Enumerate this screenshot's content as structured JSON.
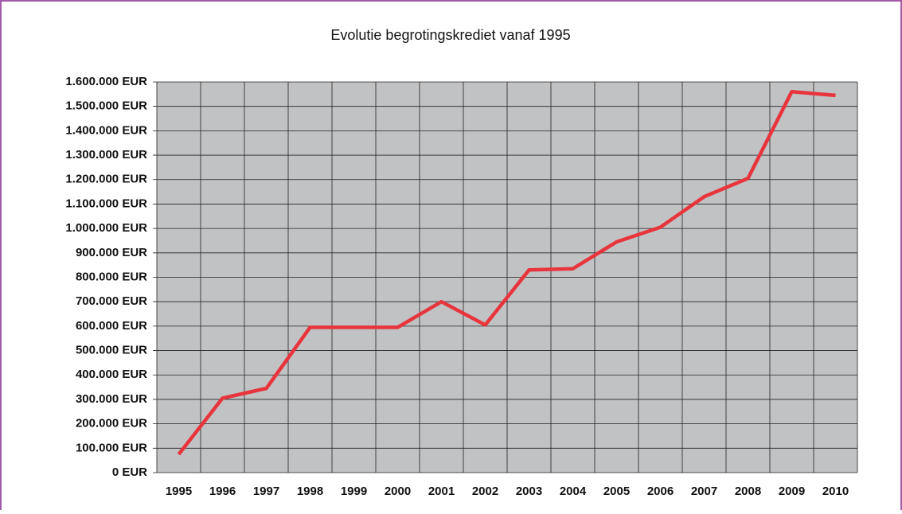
{
  "chart_data": {
    "type": "line",
    "title": "Evolutie begrotingskrediet vanaf 1995",
    "categories": [
      "1995",
      "1996",
      "1997",
      "1998",
      "1999",
      "2000",
      "2001",
      "2002",
      "2003",
      "2004",
      "2005",
      "2006",
      "2007",
      "2008",
      "2009",
      "2010"
    ],
    "series": [
      {
        "name": "Begrotingskrediet",
        "color": "#e8343c",
        "values": [
          75000,
          305000,
          345000,
          595000,
          595000,
          595000,
          700000,
          605000,
          830000,
          835000,
          945000,
          1005000,
          1130000,
          1205000,
          1560000,
          1545000
        ]
      }
    ],
    "ylim": [
      0,
      1600000
    ],
    "yticks": [
      {
        "value": 0,
        "label": "0 EUR"
      },
      {
        "value": 100000,
        "label": "100.000 EUR"
      },
      {
        "value": 200000,
        "label": "200.000 EUR"
      },
      {
        "value": 300000,
        "label": "300.000 EUR"
      },
      {
        "value": 400000,
        "label": "400.000 EUR"
      },
      {
        "value": 500000,
        "label": "500.000 EUR"
      },
      {
        "value": 600000,
        "label": "600.000 EUR"
      },
      {
        "value": 700000,
        "label": "700.000 EUR"
      },
      {
        "value": 800000,
        "label": "800.000 EUR"
      },
      {
        "value": 900000,
        "label": "900.000 EUR"
      },
      {
        "value": 1000000,
        "label": "1.000.000 EUR"
      },
      {
        "value": 1100000,
        "label": "1.100.000 EUR"
      },
      {
        "value": 1200000,
        "label": "1.200.000 EUR"
      },
      {
        "value": 1300000,
        "label": "1.300.000 EUR"
      },
      {
        "value": 1400000,
        "label": "1.400.000 EUR"
      },
      {
        "value": 1500000,
        "label": "1.500.000 EUR"
      },
      {
        "value": 1600000,
        "label": "1.600.000 EUR"
      }
    ],
    "grid": true,
    "plot_background": "#c1c2c4"
  }
}
